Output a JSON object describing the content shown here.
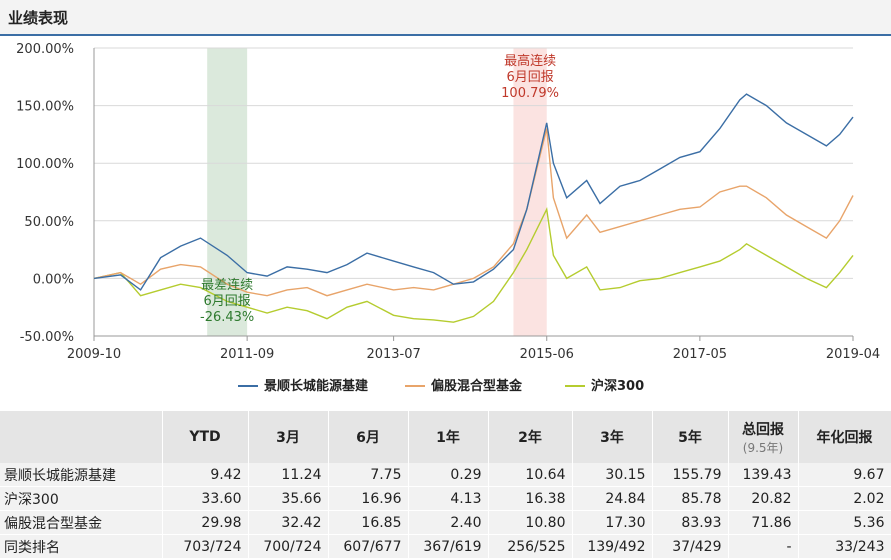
{
  "section_title": "业绩表现",
  "chart_data": {
    "type": "line",
    "ylim": [
      -50,
      200
    ],
    "y_ticks": [
      "200.00%",
      "150.00%",
      "100.00%",
      "50.00%",
      "0.00%",
      "-50.00%"
    ],
    "y_tick_values": [
      200,
      150,
      100,
      50,
      0,
      -50
    ],
    "x_ticks": [
      "2009-10",
      "2011-09",
      "2013-07",
      "2015-06",
      "2017-05",
      "2019-04"
    ],
    "xlim": [
      "2009-10",
      "2019-04"
    ],
    "grid": true,
    "legend_position": "bottom",
    "shaded_periods": [
      {
        "start": "2011-03",
        "end": "2011-09",
        "color": "#dbe9dc",
        "label": [
          "最差连续",
          "6月回报",
          "-26.43%"
        ],
        "label_color": "#2e7a2e"
      },
      {
        "start": "2015-01",
        "end": "2015-06",
        "color": "#fbe3e1",
        "label": [
          "最高连续",
          "6月回报",
          "100.79%"
        ],
        "label_color": "#c0392b"
      }
    ],
    "series": [
      {
        "name": "景顺长城能源基建",
        "color": "#3b6ea5",
        "x": [
          "2009-10",
          "2010-02",
          "2010-05",
          "2010-08",
          "2010-11",
          "2011-02",
          "2011-06",
          "2011-09",
          "2011-12",
          "2012-03",
          "2012-06",
          "2012-09",
          "2012-12",
          "2013-03",
          "2013-07",
          "2013-10",
          "2014-01",
          "2014-04",
          "2014-07",
          "2014-10",
          "2015-01",
          "2015-03",
          "2015-06",
          "2015-07",
          "2015-09",
          "2015-12",
          "2016-02",
          "2016-05",
          "2016-08",
          "2016-11",
          "2017-02",
          "2017-05",
          "2017-08",
          "2017-11",
          "2017-12",
          "2018-03",
          "2018-06",
          "2018-09",
          "2018-12",
          "2019-02",
          "2019-04"
        ],
        "y": [
          0,
          3,
          -10,
          18,
          28,
          35,
          20,
          5,
          2,
          10,
          8,
          5,
          12,
          22,
          15,
          10,
          5,
          -5,
          -3,
          8,
          25,
          60,
          135,
          100,
          70,
          85,
          65,
          80,
          85,
          95,
          105,
          110,
          130,
          155,
          160,
          150,
          135,
          125,
          115,
          125,
          140
        ]
      },
      {
        "name": "偏股混合型基金",
        "color": "#e8a46a",
        "x": [
          "2009-10",
          "2010-02",
          "2010-05",
          "2010-08",
          "2010-11",
          "2011-02",
          "2011-06",
          "2011-09",
          "2011-12",
          "2012-03",
          "2012-06",
          "2012-09",
          "2012-12",
          "2013-03",
          "2013-07",
          "2013-10",
          "2014-01",
          "2014-04",
          "2014-07",
          "2014-10",
          "2015-01",
          "2015-03",
          "2015-06",
          "2015-07",
          "2015-09",
          "2015-12",
          "2016-02",
          "2016-05",
          "2016-08",
          "2016-11",
          "2017-02",
          "2017-05",
          "2017-08",
          "2017-11",
          "2017-12",
          "2018-03",
          "2018-06",
          "2018-09",
          "2018-12",
          "2019-02",
          "2019-04"
        ],
        "y": [
          0,
          5,
          -5,
          8,
          12,
          10,
          -5,
          -12,
          -15,
          -10,
          -8,
          -15,
          -10,
          -5,
          -10,
          -8,
          -10,
          -5,
          0,
          10,
          30,
          60,
          130,
          70,
          35,
          55,
          40,
          45,
          50,
          55,
          60,
          62,
          75,
          80,
          80,
          70,
          55,
          45,
          35,
          50,
          72
        ]
      },
      {
        "name": "沪深300",
        "color": "#b5cc2f",
        "x": [
          "2009-10",
          "2010-02",
          "2010-05",
          "2010-08",
          "2010-11",
          "2011-02",
          "2011-06",
          "2011-09",
          "2011-12",
          "2012-03",
          "2012-06",
          "2012-09",
          "2012-12",
          "2013-03",
          "2013-07",
          "2013-10",
          "2014-01",
          "2014-04",
          "2014-07",
          "2014-10",
          "2015-01",
          "2015-03",
          "2015-06",
          "2015-07",
          "2015-09",
          "2015-12",
          "2016-02",
          "2016-05",
          "2016-08",
          "2016-11",
          "2017-02",
          "2017-05",
          "2017-08",
          "2017-11",
          "2017-12",
          "2018-03",
          "2018-06",
          "2018-09",
          "2018-12",
          "2019-02",
          "2019-04"
        ],
        "y": [
          0,
          5,
          -15,
          -10,
          -5,
          -8,
          -20,
          -25,
          -30,
          -25,
          -28,
          -35,
          -25,
          -20,
          -32,
          -35,
          -36,
          -38,
          -33,
          -20,
          5,
          25,
          60,
          20,
          0,
          10,
          -10,
          -8,
          -2,
          0,
          5,
          10,
          15,
          25,
          30,
          20,
          10,
          0,
          -8,
          5,
          20
        ]
      }
    ]
  },
  "table": {
    "headers": [
      "",
      "YTD",
      "3月",
      "6月",
      "1年",
      "2年",
      "3年",
      "5年",
      "总回报",
      "年化回报"
    ],
    "total_sub": "(9.5年)",
    "rows": [
      [
        "景顺长城能源基建",
        "9.42",
        "11.24",
        "7.75",
        "0.29",
        "10.64",
        "30.15",
        "155.79",
        "139.43",
        "9.67"
      ],
      [
        "沪深300",
        "33.60",
        "35.66",
        "16.96",
        "4.13",
        "16.38",
        "24.84",
        "85.78",
        "20.82",
        "2.02"
      ],
      [
        "偏股混合型基金",
        "29.98",
        "32.42",
        "16.85",
        "2.40",
        "10.80",
        "17.30",
        "83.93",
        "71.86",
        "5.36"
      ],
      [
        "同类排名",
        "703/724",
        "700/724",
        "607/677",
        "367/619",
        "256/525",
        "139/492",
        "37/429",
        "-",
        "33/243"
      ]
    ]
  }
}
